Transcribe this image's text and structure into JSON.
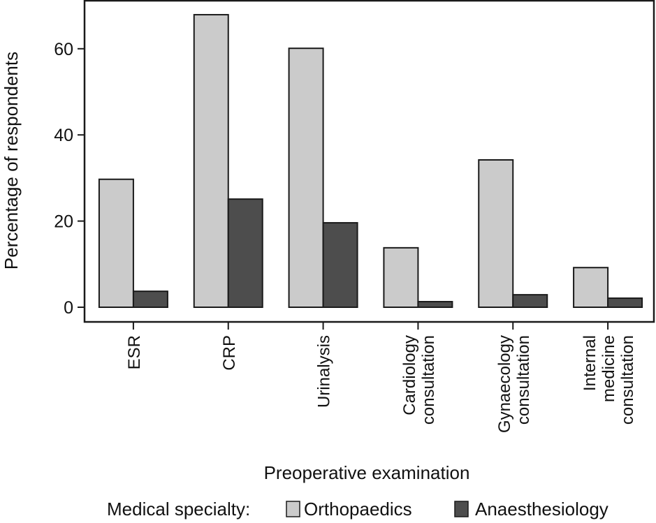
{
  "chart_data": {
    "type": "bar",
    "title": "",
    "xlabel": "Preoperative examination",
    "ylabel": "Percentage of respondents",
    "ylim": [
      0,
      70
    ],
    "yticks": [
      0,
      20,
      40,
      60
    ],
    "grid": false,
    "categories": [
      [
        "ESR"
      ],
      [
        "CRP"
      ],
      [
        "Urinalysis"
      ],
      [
        "Cardiology",
        "consultation"
      ],
      [
        "Gynaecology",
        "consultation"
      ],
      [
        "Internal",
        "medicine",
        "consultation"
      ]
    ],
    "category_names": [
      "ESR",
      "CRP",
      "Urinalysis",
      "Cardiology consultation",
      "Gynaecology consultation",
      "Internal medicine consultation"
    ],
    "series": [
      {
        "name": "Orthopaedics",
        "color": "#cbcbcb",
        "values": [
          29.7,
          67.9,
          60.1,
          13.8,
          34.2,
          9.2
        ]
      },
      {
        "name": "Anaesthesiology",
        "color": "#4d4d4d",
        "values": [
          3.7,
          25.1,
          19.6,
          1.3,
          2.9,
          2.1
        ]
      }
    ],
    "legend": {
      "title": "Medical specialty:",
      "placement": "bottom",
      "entries": [
        "Orthopaedics",
        "Anaesthesiology"
      ]
    }
  }
}
